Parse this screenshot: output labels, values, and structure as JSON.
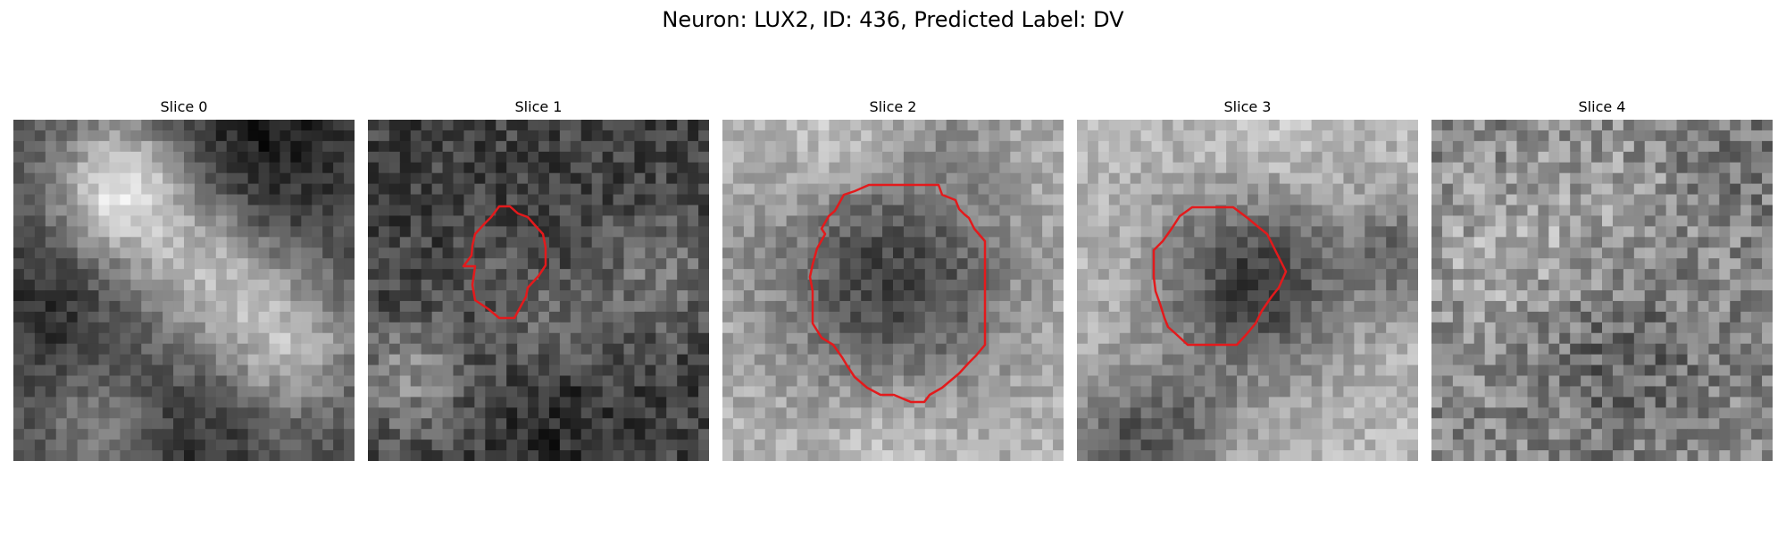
{
  "figure": {
    "title": "Neuron: LUX2, ID: 436, Predicted Label: DV"
  },
  "colors": {
    "background": "#ffffff",
    "contour": "#e31a1c"
  },
  "slices": [
    {
      "title": "Slice 0",
      "has_contour": false,
      "mean_intensity": 0.56,
      "contrast": 0.42,
      "noise": 0.1,
      "bright_regions": "center-right diagonal band"
    },
    {
      "title": "Slice 1",
      "has_contour": true,
      "mean_intensity": 0.36,
      "contrast": 0.34,
      "noise": 0.14,
      "bright_regions": "lower-left and right side"
    },
    {
      "title": "Slice 2",
      "has_contour": true,
      "mean_intensity": 0.5,
      "contrast": 0.46,
      "noise": 0.11,
      "bright_regions": "top, left and bottom border"
    },
    {
      "title": "Slice 3",
      "has_contour": true,
      "mean_intensity": 0.55,
      "contrast": 0.48,
      "noise": 0.11,
      "bright_regions": "surrounding a dark center"
    },
    {
      "title": "Slice 4",
      "has_contour": false,
      "mean_intensity": 0.55,
      "contrast": 0.22,
      "noise": 0.18,
      "bright_regions": "scattered, upper-left"
    }
  ]
}
